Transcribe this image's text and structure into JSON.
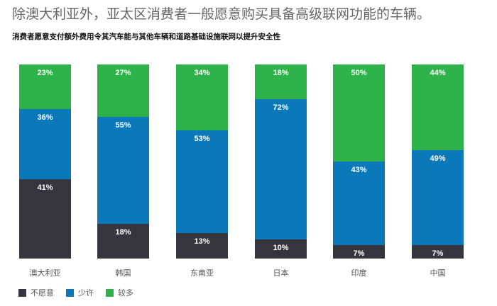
{
  "headline": "除澳大利亚外，亚太区消费者一般愿意购买具备高级联网功能的车辆。",
  "subtitle": "消费者愿意支付额外费用令其汽车能与其他车辆和道路基础设施联网以提升安全性",
  "colors": {
    "unwilling": "#36343c",
    "some": "#0a78b9",
    "more": "#2eb34b"
  },
  "legend": [
    {
      "label": "不愿意",
      "color": "#36343c"
    },
    {
      "label": "少许",
      "color": "#0a78b9"
    },
    {
      "label": "较多",
      "color": "#2eb34b"
    }
  ],
  "bars": [
    {
      "category": "澳大利亚",
      "more": "23%",
      "some": "36%",
      "unwilling": "41%"
    },
    {
      "category": "韩国",
      "more": "27%",
      "some": "55%",
      "unwilling": "18%"
    },
    {
      "category": "东南亚",
      "more": "34%",
      "some": "53%",
      "unwilling": "13%"
    },
    {
      "category": "日本",
      "more": "18%",
      "some": "72%",
      "unwilling": "10%"
    },
    {
      "category": "印度",
      "more": "50%",
      "some": "43%",
      "unwilling": "7%"
    },
    {
      "category": "中国",
      "more": "44%",
      "some": "49%",
      "unwilling": "7%"
    }
  ],
  "chart_data": {
    "type": "bar",
    "stacked": true,
    "normalized": true,
    "title": "除澳大利亚外，亚太区消费者一般愿意购买具备高级联网功能的车辆。",
    "subtitle": "消费者愿意支付额外费用令其汽车能与其他车辆和道路基础设施联网以提升安全性",
    "xlabel": "",
    "ylabel": "",
    "ylim": [
      0,
      100
    ],
    "grid": false,
    "legend_position": "bottom-left",
    "categories": [
      "澳大利亚",
      "韩国",
      "东南亚",
      "日本",
      "印度",
      "中国"
    ],
    "series": [
      {
        "name": "不愿意",
        "color": "#36343c",
        "values": [
          41,
          18,
          13,
          10,
          7,
          7
        ]
      },
      {
        "name": "少许",
        "color": "#0a78b9",
        "values": [
          36,
          55,
          53,
          72,
          43,
          49
        ]
      },
      {
        "name": "较多",
        "color": "#2eb34b",
        "values": [
          23,
          27,
          34,
          18,
          50,
          44
        ]
      }
    ]
  }
}
